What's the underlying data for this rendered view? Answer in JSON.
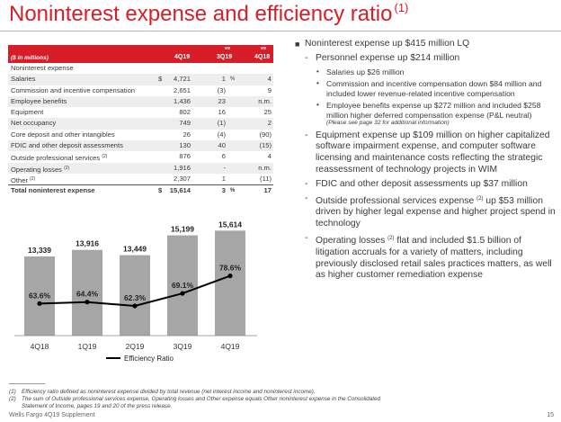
{
  "title": {
    "text": "Noninterest expense and efficiency ratio",
    "footnote_ref": "(1)"
  },
  "table": {
    "header": {
      "units": "($ in millions)",
      "col1": "4Q19",
      "col2_vs": "vs",
      "col2": "3Q19",
      "col3_vs": "vs",
      "col3": "4Q18"
    },
    "section": "Noninterest expense",
    "rows": [
      {
        "label": "Salaries",
        "sup": "",
        "dollar": "$",
        "v1": "4,721",
        "v2": "1",
        "pct": "%",
        "v3": "4"
      },
      {
        "label": "Commission and incentive compensation",
        "sup": "",
        "dollar": "",
        "v1": "2,651",
        "v2": "(3)",
        "pct": "",
        "v3": "9"
      },
      {
        "label": "Employee benefits",
        "sup": "",
        "dollar": "",
        "v1": "1,436",
        "v2": "23",
        "pct": "",
        "v3": "n.m."
      },
      {
        "label": "Equipment",
        "sup": "",
        "dollar": "",
        "v1": "802",
        "v2": "16",
        "pct": "",
        "v3": "25"
      },
      {
        "label": "Net occupancy",
        "sup": "",
        "dollar": "",
        "v1": "749",
        "v2": "(1)",
        "pct": "",
        "v3": "2"
      },
      {
        "label": "Core deposit and other intangibles",
        "sup": "",
        "dollar": "",
        "v1": "26",
        "v2": "(4)",
        "pct": "",
        "v3": "(90)"
      },
      {
        "label": "FDIC and other deposit assessments",
        "sup": "",
        "dollar": "",
        "v1": "130",
        "v2": "40",
        "pct": "",
        "v3": "(15)"
      },
      {
        "label": "Outside professional services",
        "sup": "(2)",
        "dollar": "",
        "v1": "876",
        "v2": "6",
        "pct": "",
        "v3": "4"
      },
      {
        "label": "Operating losses",
        "sup": "(2)",
        "dollar": "",
        "v1": "1,916",
        "v2": "-",
        "pct": "",
        "v3": "n.m."
      },
      {
        "label": "Other",
        "sup": "(2)",
        "dollar": "",
        "v1": "2,307",
        "v2": "1",
        "pct": "",
        "v3": "(11)"
      }
    ],
    "total": {
      "label": "Total noninterest expense",
      "dollar": "$",
      "v1": "15,614",
      "v2": "3",
      "pct": "%",
      "v3": "17"
    }
  },
  "chart_data": {
    "type": "bar",
    "categories": [
      "4Q18",
      "1Q19",
      "2Q19",
      "3Q19",
      "4Q19"
    ],
    "series": [
      {
        "name": "",
        "values": [
          13339,
          13916,
          13449,
          15199,
          15614
        ],
        "labels": [
          "13,339",
          "13,916",
          "13,449",
          "15,199",
          "15,614"
        ],
        "color": "#a6a6a6"
      },
      {
        "name": "Efficiency Ratio",
        "values": [
          63.6,
          64.4,
          62.3,
          69.1,
          78.6
        ],
        "labels": [
          "63.6%",
          "64.4%",
          "62.3%",
          "69.1%",
          "78.6%"
        ],
        "color": "#000000"
      }
    ],
    "legend": "bottom",
    "grid": false
  },
  "bullets": [
    {
      "level": 1,
      "mark": "■",
      "text": "Noninterest expense up $415 million LQ"
    },
    {
      "level": 2,
      "mark": "-",
      "text": "Personnel expense up $214 million"
    },
    {
      "level": 3,
      "mark": "•",
      "text": "Salaries up $26 million"
    },
    {
      "level": 3,
      "mark": "•",
      "text": "Commission and incentive compensation down $84 million and included lower revenue-related incentive compensation"
    },
    {
      "level": 3,
      "mark": "•",
      "text": "Employee benefits expense up $272 million and included $258 million higher deferred compensation expense (P&L neutral)",
      "note": "(Please see page 32 for additional information)"
    },
    {
      "level": 2,
      "mark": "-",
      "text": "Equipment expense up $109 million on higher capitalized software impairment expense, and computer software licensing and maintenance costs reflecting the strategic reassessment of technology projects in WIM"
    },
    {
      "level": 2,
      "mark": "-",
      "text": "FDIC and other deposit assessments up $37 million"
    },
    {
      "level": 2,
      "mark": "-",
      "pre": "Outside professional services expense",
      "sup": "(2)",
      "text": "up $53 million driven by higher legal expense and higher project spend in technology"
    },
    {
      "level": 2,
      "mark": "-",
      "pre": "Operating losses",
      "sup": "(2)",
      "text": "flat and included $1.5 billion of litigation accruals for a variety of matters, including previously disclosed retail sales practices matters, as well as higher customer remediation expense"
    }
  ],
  "footnotes": [
    {
      "n": "(1)",
      "text": "Efficiency ratio defined as noninterest expense divided by total revenue (net interest income and noninterest income)."
    },
    {
      "n": "(2)",
      "text": "The sum of Outside professional services expense, Operating losses and Other expense equals Other noninterest expense in the Consolidated Statement of Income, pages 19 and 20 of the press release."
    }
  ],
  "footer": {
    "left": "Wells Fargo 4Q19 Supplement",
    "page": "15"
  },
  "colors": {
    "accent": "#d71e28",
    "bar": "#a6a6a6",
    "line": "#000000",
    "shade": "#eeeeee"
  }
}
